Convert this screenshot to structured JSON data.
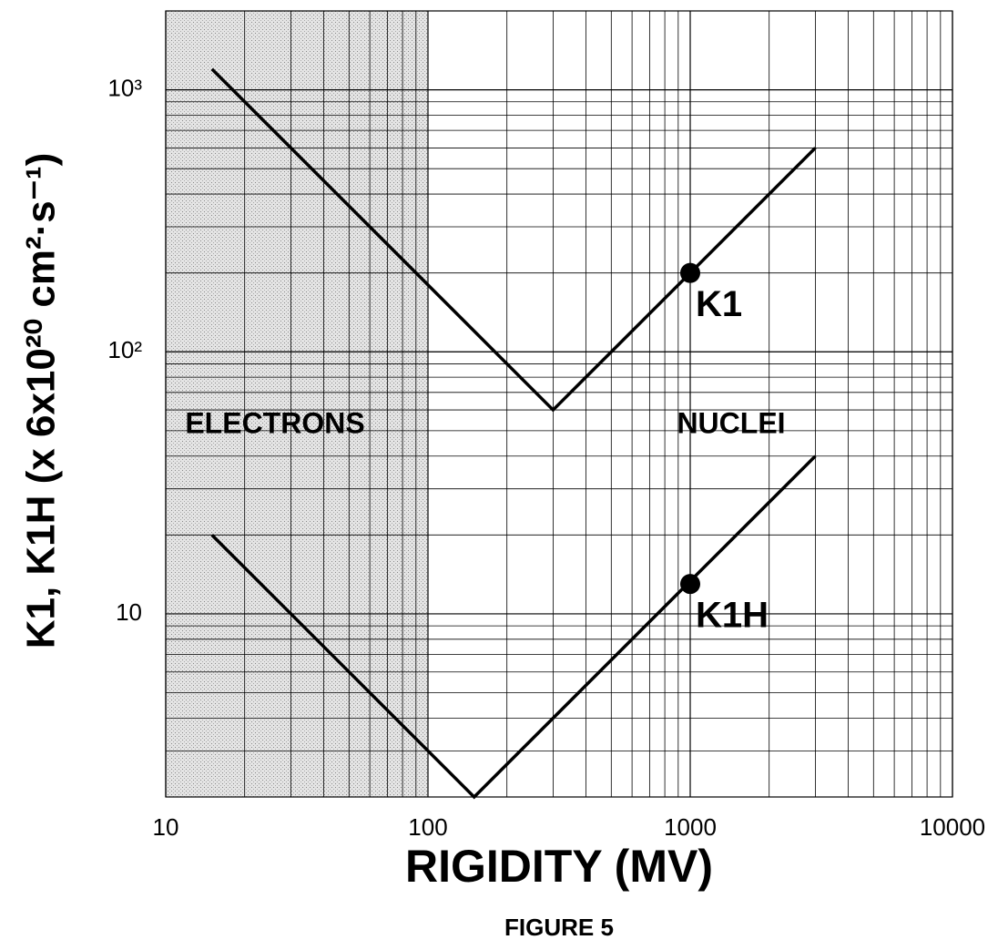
{
  "chart_data": {
    "type": "line",
    "title": "FIGURE 5",
    "x_label": "RIGIDITY (MV)",
    "y_label": "K1, K1H (x 6x10²⁰ cm²·s⁻¹)",
    "xscale": "log",
    "yscale": "log",
    "xlim": [
      10,
      10000
    ],
    "ylim": [
      2,
      2000
    ],
    "xticks": [
      10,
      100,
      1000,
      10000
    ],
    "yticks": [
      10,
      {
        "value": 100,
        "label": "10²"
      },
      {
        "value": 1000,
        "label": "10³"
      }
    ],
    "grid": true,
    "shaded_xrange": [
      10,
      100
    ],
    "series": [
      {
        "name": "K1",
        "color": "#000000",
        "x": [
          15,
          300,
          3000
        ],
        "values": [
          1200,
          60,
          600
        ]
      },
      {
        "name": "K1H",
        "color": "#000000",
        "x": [
          15,
          150,
          3000
        ],
        "values": [
          20,
          2,
          40
        ]
      }
    ],
    "points": [
      {
        "x": 1000,
        "y": 200,
        "label": "K1"
      },
      {
        "x": 1000,
        "y": 13,
        "label": "K1H"
      }
    ],
    "annotations": [
      "ELECTRONS",
      "NUCLEI"
    ]
  }
}
